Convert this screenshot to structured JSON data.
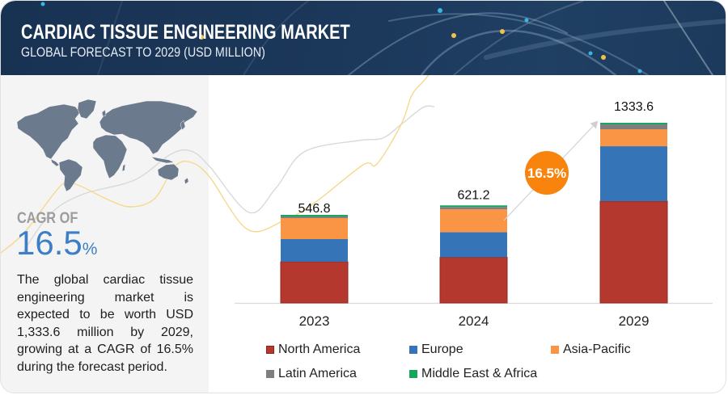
{
  "header": {
    "title": "CARDIAC TISSUE ENGINEERING MARKET",
    "subtitle": "GLOBAL FORECAST TO 2029 (USD MILLION)"
  },
  "left_panel": {
    "map_icon": "world-map",
    "cagr_label": "CAGR OF",
    "cagr_value": "16.5",
    "cagr_unit": "%",
    "description": "The global cardiac tissue engineering market is expected to be worth USD 1,333.6 million by 2029, growing at a CAGR of 16.5% during the forecast period."
  },
  "chart_data": {
    "type": "bar",
    "stacked": true,
    "title": "Cardiac Tissue Engineering Market — Global Forecast to 2029 (USD Million)",
    "xlabel": "",
    "ylabel": "",
    "grid": false,
    "categories": [
      "2023",
      "2024",
      "2029"
    ],
    "totals": [
      546.8,
      621.2,
      1333.6
    ],
    "total_labels": [
      "546.8",
      "621.2",
      "1333.6"
    ],
    "series": [
      {
        "name": "North America",
        "color": "#b5382f",
        "values": [
          255.9,
          290.6,
          753.4
        ]
      },
      {
        "name": "Europe",
        "color": "#3574b6",
        "values": [
          140.5,
          160.3,
          406.7
        ]
      },
      {
        "name": "Asia-Pacific",
        "color": "#fa9546",
        "values": [
          130.4,
          145.3,
          125.6
        ]
      },
      {
        "name": "Latin America",
        "color": "#7f7f7f",
        "values": [
          10.0,
          15.0,
          35.9
        ]
      },
      {
        "name": "Middle East & Africa",
        "color": "#18a45b",
        "values": [
          10.0,
          10.0,
          12.0
        ]
      }
    ],
    "cagr_badge": {
      "label": "16.5%",
      "color": "#f8840e",
      "icon": "growth-arrow"
    },
    "legend": {
      "position": "bottom"
    }
  }
}
